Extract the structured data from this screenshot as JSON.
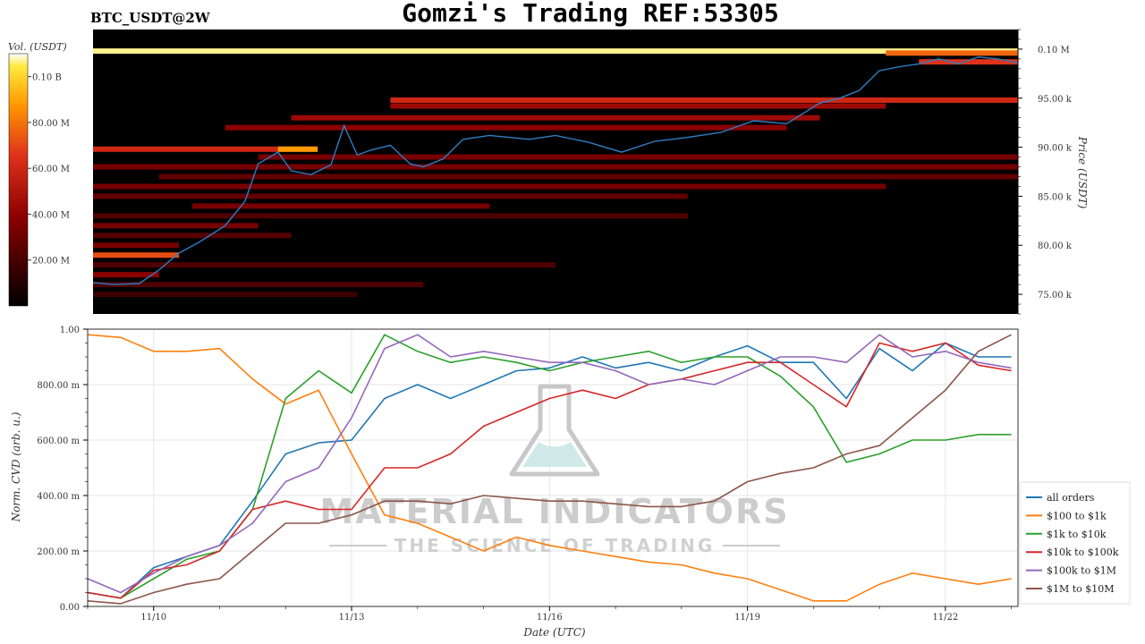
{
  "header": {
    "ticker": "BTC_USDT@2W",
    "title": "Gomzi's Trading REF:53305"
  },
  "colorbar": {
    "label": "Vol. (USDT)",
    "ticks": [
      "0.10 B",
      "80.00 M",
      "60.00 M",
      "40.00 M",
      "20.00 M"
    ],
    "tick_values": [
      100000000,
      80000000,
      60000000,
      40000000,
      20000000
    ],
    "range": [
      0,
      110000000
    ]
  },
  "watermark": {
    "line1": "MATERIAL INDICATORS",
    "line2": "THE SCIENCE OF TRADING"
  },
  "chart_data": [
    {
      "type": "heatmap",
      "ylabel": "Price (USDT)",
      "ylim": [
        73000,
        102000
      ],
      "yticks": [
        "0.10 M",
        "95.00 k",
        "90.00 k",
        "85.00 k",
        "80.00 k",
        "75.00 k"
      ],
      "ytick_values": [
        100000,
        95000,
        90000,
        85000,
        80000,
        75000
      ],
      "overlay_line": {
        "name": "price",
        "color": "#2f7ec2",
        "x_days": [
          0,
          0.3,
          0.7,
          1.0,
          1.3,
          1.6,
          2.0,
          2.3,
          2.5,
          2.8,
          3.0,
          3.3,
          3.6,
          3.8,
          4.0,
          4.2,
          4.5,
          4.8,
          5.0,
          5.3,
          5.6,
          6.0,
          6.3,
          6.6,
          7.0,
          7.5,
          8.0,
          8.5,
          9.0,
          9.5,
          10.0,
          10.5,
          11.0,
          11.3,
          11.6,
          11.9,
          12.2,
          12.5,
          12.8,
          13.1,
          13.4,
          13.7,
          14.0
        ],
        "values": [
          76200,
          76000,
          76100,
          77500,
          79200,
          80300,
          82000,
          84500,
          88300,
          89500,
          87600,
          87200,
          88200,
          92200,
          89200,
          89700,
          90200,
          88300,
          88000,
          88800,
          90800,
          91200,
          91000,
          90800,
          91200,
          90500,
          89500,
          90600,
          91000,
          91500,
          92700,
          92400,
          94500,
          95000,
          95800,
          97800,
          98200,
          98500,
          99000,
          98500,
          99200,
          99000,
          98600
        ]
      },
      "bands": [
        {
          "price": 99800,
          "start_day": 0,
          "end_day": 14,
          "level": 0.97
        },
        {
          "price": 99600,
          "start_day": 12,
          "end_day": 14,
          "level": 0.7
        },
        {
          "price": 98700,
          "start_day": 12.5,
          "end_day": 14,
          "level": 0.6
        },
        {
          "price": 94800,
          "start_day": 4.5,
          "end_day": 14,
          "level": 0.55
        },
        {
          "price": 94200,
          "start_day": 4.5,
          "end_day": 12,
          "level": 0.4
        },
        {
          "price": 93000,
          "start_day": 3,
          "end_day": 11,
          "level": 0.4
        },
        {
          "price": 92000,
          "start_day": 2,
          "end_day": 10.5,
          "level": 0.35
        },
        {
          "price": 89800,
          "start_day": 0,
          "end_day": 3.4,
          "level": 0.55
        },
        {
          "price": 89800,
          "start_day": 2.8,
          "end_day": 3.4,
          "level": 0.8
        },
        {
          "price": 89000,
          "start_day": 2.5,
          "end_day": 14,
          "level": 0.3
        },
        {
          "price": 88000,
          "start_day": 0,
          "end_day": 14,
          "level": 0.3
        },
        {
          "price": 87000,
          "start_day": 1.0,
          "end_day": 14,
          "level": 0.25
        },
        {
          "price": 86000,
          "start_day": 0,
          "end_day": 12,
          "level": 0.3
        },
        {
          "price": 85000,
          "start_day": 0,
          "end_day": 9,
          "level": 0.25
        },
        {
          "price": 84000,
          "start_day": 1.5,
          "end_day": 6,
          "level": 0.3
        },
        {
          "price": 83000,
          "start_day": 0,
          "end_day": 9,
          "level": 0.2
        },
        {
          "price": 82000,
          "start_day": 0,
          "end_day": 2.5,
          "level": 0.3
        },
        {
          "price": 81000,
          "start_day": 0,
          "end_day": 3,
          "level": 0.22
        },
        {
          "price": 80000,
          "start_day": 0,
          "end_day": 1.3,
          "level": 0.3
        },
        {
          "price": 79000,
          "start_day": 0,
          "end_day": 1.3,
          "level": 0.65
        },
        {
          "price": 78000,
          "start_day": 0,
          "end_day": 7,
          "level": 0.2
        },
        {
          "price": 77000,
          "start_day": 0,
          "end_day": 1.0,
          "level": 0.35
        },
        {
          "price": 76000,
          "start_day": 0,
          "end_day": 5,
          "level": 0.2
        },
        {
          "price": 75000,
          "start_day": 0,
          "end_day": 4,
          "level": 0.15
        }
      ]
    },
    {
      "type": "line",
      "xlabel": "Date (UTC)",
      "ylabel": "Norm. CVD (arb. u.)",
      "ylim": [
        0,
        1
      ],
      "yticks": [
        "1.00",
        "800.00 m",
        "600.00 m",
        "400.00 m",
        "200.00 m",
        "0.00"
      ],
      "ytick_values": [
        1.0,
        0.8,
        0.6,
        0.4,
        0.2,
        0.0
      ],
      "xticks": [
        "11/10",
        "11/13",
        "11/16",
        "11/19",
        "11/22"
      ],
      "xtick_days": [
        1,
        4,
        7,
        10,
        13
      ],
      "xlim_days": [
        0,
        14.1
      ],
      "x_days": [
        0,
        0.5,
        1.0,
        1.5,
        2.0,
        2.5,
        3.0,
        3.5,
        4.0,
        4.5,
        5.0,
        5.5,
        6.0,
        6.5,
        7.0,
        7.5,
        8.0,
        8.5,
        9.0,
        9.5,
        10.0,
        10.5,
        11.0,
        11.5,
        12.0,
        12.5,
        13.0,
        13.5,
        14.0
      ],
      "series": [
        {
          "name": "all orders",
          "color": "#1f77b4",
          "values": [
            0.05,
            0.03,
            0.14,
            0.18,
            0.22,
            0.38,
            0.55,
            0.59,
            0.6,
            0.75,
            0.8,
            0.75,
            0.8,
            0.85,
            0.86,
            0.9,
            0.86,
            0.88,
            0.85,
            0.9,
            0.94,
            0.88,
            0.88,
            0.75,
            0.93,
            0.85,
            0.95,
            0.9,
            0.9
          ]
        },
        {
          "name": "$100 to $1k",
          "color": "#ff7f0e",
          "values": [
            0.98,
            0.97,
            0.92,
            0.92,
            0.93,
            0.82,
            0.73,
            0.78,
            0.55,
            0.33,
            0.3,
            0.25,
            0.2,
            0.25,
            0.22,
            0.2,
            0.18,
            0.16,
            0.15,
            0.12,
            0.1,
            0.06,
            0.02,
            0.02,
            0.08,
            0.12,
            0.1,
            0.08,
            0.1
          ]
        },
        {
          "name": "$1k to $10k",
          "color": "#2ca02c",
          "values": [
            0.05,
            0.03,
            0.1,
            0.17,
            0.2,
            0.35,
            0.75,
            0.85,
            0.77,
            0.98,
            0.92,
            0.88,
            0.9,
            0.88,
            0.85,
            0.88,
            0.9,
            0.92,
            0.88,
            0.9,
            0.9,
            0.83,
            0.72,
            0.52,
            0.55,
            0.6,
            0.6,
            0.62,
            0.62
          ]
        },
        {
          "name": "$10k to $100k",
          "color": "#d62728",
          "values": [
            0.05,
            0.03,
            0.13,
            0.15,
            0.2,
            0.35,
            0.38,
            0.35,
            0.35,
            0.5,
            0.5,
            0.55,
            0.65,
            0.7,
            0.75,
            0.78,
            0.75,
            0.8,
            0.82,
            0.85,
            0.88,
            0.88,
            0.8,
            0.72,
            0.95,
            0.92,
            0.95,
            0.87,
            0.85
          ]
        },
        {
          "name": "$100k to $1M",
          "color": "#9467bd",
          "values": [
            0.1,
            0.05,
            0.12,
            0.18,
            0.22,
            0.3,
            0.45,
            0.5,
            0.68,
            0.93,
            0.98,
            0.9,
            0.92,
            0.9,
            0.88,
            0.88,
            0.85,
            0.8,
            0.82,
            0.8,
            0.85,
            0.9,
            0.9,
            0.88,
            0.98,
            0.9,
            0.92,
            0.88,
            0.86
          ]
        },
        {
          "name": "$1M to $10M",
          "color": "#8c564b",
          "values": [
            0.02,
            0.01,
            0.05,
            0.08,
            0.1,
            0.2,
            0.3,
            0.3,
            0.33,
            0.38,
            0.38,
            0.37,
            0.4,
            0.39,
            0.38,
            0.38,
            0.37,
            0.36,
            0.36,
            0.38,
            0.45,
            0.48,
            0.5,
            0.55,
            0.58,
            0.68,
            0.78,
            0.92,
            0.98
          ]
        }
      ]
    }
  ]
}
